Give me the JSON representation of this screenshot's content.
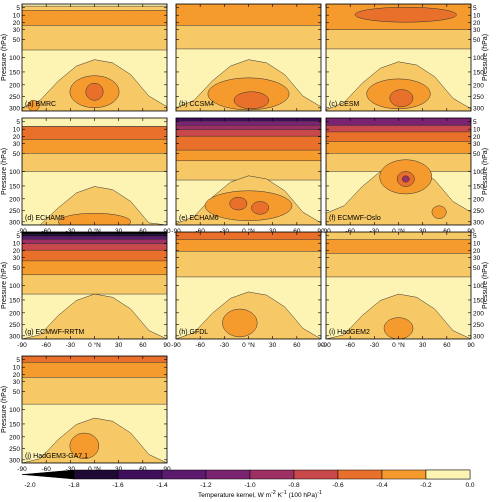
{
  "chart_data": {
    "type": "contour",
    "colorbar": {
      "label_html": "Temperature kernel, W m<sup>-2</sup> K<sup>-1</sup> (100 hPa)<sup>-1</sup>",
      "ticks": [
        "-2.0",
        "-1.8",
        "-1.6",
        "-1.4",
        "-1.2",
        "-1.0",
        "-0.8",
        "-0.6",
        "-0.4",
        "-0.2",
        "0.0"
      ],
      "levels": [
        -2.0,
        -1.8,
        -1.6,
        -1.4,
        -1.2,
        -1.0,
        -0.8,
        -0.6,
        -0.4,
        -0.2,
        0.0
      ],
      "colors": [
        "#000000",
        "#1f0a36",
        "#3f0f5c",
        "#5b1a6e",
        "#7a2370",
        "#9e2f62",
        "#c8484b",
        "#e8702b",
        "#f59a2c",
        "#f7c966",
        "#fdf3b2"
      ]
    },
    "axes": {
      "ylabel": "Pressure (hPa)",
      "yticks": [
        "5",
        "10",
        "20",
        "30",
        "50",
        "100",
        "150",
        "200",
        "250",
        "300"
      ],
      "yvalues": [
        5,
        10,
        20,
        30,
        50,
        100,
        150,
        200,
        250,
        300
      ],
      "xticks": [
        "-90",
        "-60",
        "-30",
        "0 °N",
        "30",
        "60",
        "90"
      ],
      "xvalues": [
        -90,
        -60,
        -30,
        0,
        30,
        60,
        90
      ],
      "xlim": [
        -90,
        90
      ],
      "ylim": [
        0,
        300
      ]
    },
    "panels": [
      {
        "label": "(a) BMRC",
        "profile": "bmrc",
        "ytick_side": "left",
        "has_xticks": false
      },
      {
        "label": "(b) CCSM4",
        "profile": "ccsm4",
        "ytick_side": "none",
        "has_xticks": false
      },
      {
        "label": "(c) CESM",
        "profile": "cesm",
        "ytick_side": "right",
        "has_xticks": false
      },
      {
        "label": "(d) ECHAM5",
        "profile": "echam5",
        "ytick_side": "left",
        "has_xticks": true
      },
      {
        "label": "(e) ECHAM6",
        "profile": "echam6",
        "ytick_side": "none",
        "has_xticks": true
      },
      {
        "label": "(f) ECMWF-Oslo",
        "profile": "oslo",
        "ytick_side": "right",
        "has_xticks": true
      },
      {
        "label": "(g) ECMWF-RRTM",
        "profile": "rrtm",
        "ytick_side": "left",
        "has_xticks": true
      },
      {
        "label": "(h) GFDL",
        "profile": "gfdl",
        "ytick_side": "none",
        "has_xticks": true
      },
      {
        "label": "(i) HadGEM2",
        "profile": "hadgem2",
        "ytick_side": "right",
        "has_xticks": true
      },
      {
        "label": "(j) HadGEM3-GA7.1",
        "profile": "hadgem3",
        "ytick_side": "left",
        "has_xticks": true
      }
    ]
  }
}
